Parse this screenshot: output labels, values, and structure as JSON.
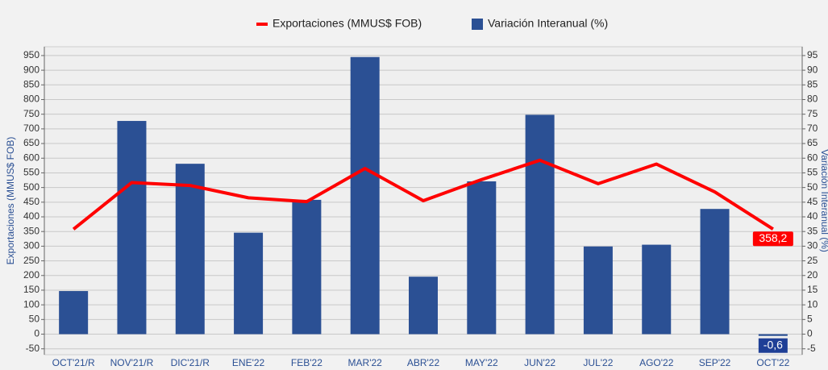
{
  "chart_data": {
    "type": "bar_line",
    "y_label": "Exportaciones (MMUS$ FOB)",
    "y2_label": "Variación Interanual (%)",
    "categories": [
      "OCT'21/R",
      "NOV'21/R",
      "DIC'21/R",
      "ENE'22",
      "FEB'22",
      "MAR'22",
      "ABR'22",
      "MAY'22",
      "JUN'22",
      "JUL'22",
      "AGO'22",
      "SEP'22",
      "OCT'22"
    ],
    "series": [
      {
        "name": "Exportaciones (MMUS$ FOB)",
        "type": "line",
        "color": "#ff0000",
        "axis": "y",
        "values": [
          358,
          517,
          507,
          465,
          452,
          565,
          455,
          527,
          593,
          513,
          580,
          485,
          358.2
        ],
        "value_labels": [
          null,
          null,
          null,
          null,
          null,
          null,
          null,
          null,
          null,
          null,
          null,
          null,
          "358,2"
        ]
      },
      {
        "name": "Variación Interanual (%)",
        "type": "bar",
        "color": "#2b5094",
        "axis": "y2",
        "values": [
          14.7,
          72.7,
          58.1,
          34.6,
          45.8,
          94.5,
          19.6,
          52.1,
          74.8,
          29.9,
          30.5,
          42.7,
          -0.6
        ],
        "value_labels": [
          null,
          null,
          null,
          null,
          null,
          null,
          null,
          null,
          null,
          null,
          null,
          null,
          "-0,6"
        ]
      }
    ],
    "ylim": [
      -70,
      980
    ],
    "yticks": [
      -50,
      0,
      50,
      100,
      150,
      200,
      250,
      300,
      350,
      400,
      450,
      500,
      550,
      600,
      650,
      700,
      750,
      800,
      850,
      900,
      950
    ],
    "y2lim": [
      -7,
      98
    ],
    "y2ticks": [
      -5,
      0,
      5,
      10,
      15,
      20,
      25,
      30,
      35,
      40,
      45,
      50,
      55,
      60,
      65,
      70,
      75,
      80,
      85,
      90,
      95
    ],
    "grid": true,
    "legend": "top"
  }
}
